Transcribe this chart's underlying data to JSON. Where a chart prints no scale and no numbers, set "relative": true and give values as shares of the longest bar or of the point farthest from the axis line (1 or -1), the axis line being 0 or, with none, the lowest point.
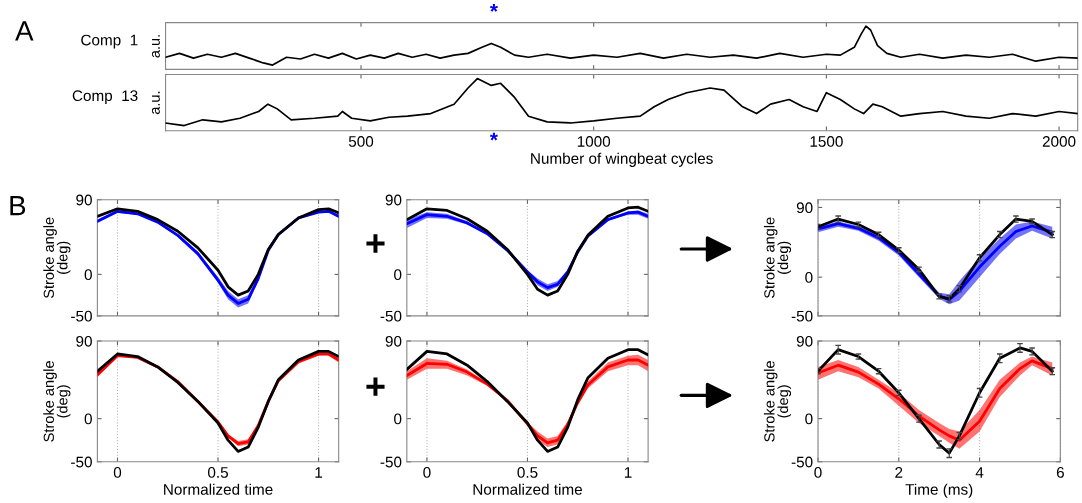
{
  "chart_data": [
    {
      "type": "line",
      "title": "Comp  1",
      "ylabel": "a.u.",
      "relative": true,
      "tick_labels": false,
      "xlim": [
        80,
        2040
      ],
      "xticks": [
        500,
        1000,
        1500,
        2000
      ],
      "annotations": [
        "A",
        "*"
      ],
      "x": [
        80,
        110,
        140,
        170,
        200,
        230,
        260,
        290,
        310,
        340,
        370,
        400,
        430,
        460,
        490,
        520,
        550,
        580,
        610,
        640,
        670,
        700,
        730,
        760,
        780,
        800,
        830,
        860,
        900,
        950,
        1000,
        1050,
        1100,
        1150,
        1200,
        1250,
        1300,
        1350,
        1400,
        1450,
        1500,
        1530,
        1560,
        1575,
        1585,
        1595,
        1610,
        1630,
        1660,
        1700,
        1750,
        1800,
        1850,
        1900,
        1950,
        2000,
        2040
      ],
      "series": [
        {
          "color": "#000000",
          "values": [
            0.28,
            0.37,
            0.26,
            0.35,
            0.28,
            0.37,
            0.26,
            0.15,
            0.1,
            0.28,
            0.24,
            0.35,
            0.26,
            0.37,
            0.24,
            0.33,
            0.26,
            0.37,
            0.28,
            0.35,
            0.26,
            0.33,
            0.37,
            0.51,
            0.6,
            0.51,
            0.33,
            0.28,
            0.35,
            0.26,
            0.33,
            0.28,
            0.37,
            0.26,
            0.35,
            0.28,
            0.33,
            0.26,
            0.37,
            0.28,
            0.35,
            0.33,
            0.51,
            0.82,
            1.0,
            0.91,
            0.55,
            0.37,
            0.28,
            0.35,
            0.26,
            0.33,
            0.28,
            0.35,
            0.19,
            0.28,
            0.26
          ]
        }
      ]
    },
    {
      "type": "line",
      "title": "Comp  13",
      "ylabel": "a.u.",
      "xlabel": "Number of wingbeat cycles",
      "relative": true,
      "tick_labels": "x",
      "xlim": [
        80,
        2040
      ],
      "xticks": [
        500,
        1000,
        1500,
        2000
      ],
      "annotations": [
        "*"
      ],
      "x": [
        80,
        120,
        160,
        200,
        240,
        280,
        300,
        320,
        350,
        400,
        450,
        460,
        480,
        520,
        560,
        600,
        650,
        700,
        730,
        750,
        780,
        800,
        830,
        860,
        900,
        950,
        1000,
        1050,
        1100,
        1130,
        1160,
        1200,
        1250,
        1280,
        1320,
        1350,
        1380,
        1420,
        1450,
        1480,
        1500,
        1530,
        1560,
        1580,
        1600,
        1620,
        1660,
        1700,
        1750,
        1800,
        1850,
        1900,
        1950,
        2000,
        2040
      ],
      "series": [
        {
          "color": "#000000",
          "values": [
            0.15,
            0.1,
            0.21,
            0.17,
            0.24,
            0.37,
            0.51,
            0.42,
            0.21,
            0.24,
            0.28,
            0.37,
            0.24,
            0.19,
            0.26,
            0.28,
            0.33,
            0.51,
            0.82,
            1.0,
            0.87,
            0.91,
            0.64,
            0.28,
            0.17,
            0.15,
            0.19,
            0.24,
            0.28,
            0.46,
            0.6,
            0.73,
            0.82,
            0.78,
            0.46,
            0.33,
            0.51,
            0.6,
            0.46,
            0.37,
            0.73,
            0.6,
            0.42,
            0.33,
            0.51,
            0.46,
            0.28,
            0.33,
            0.37,
            0.28,
            0.24,
            0.33,
            0.28,
            0.37,
            0.33
          ]
        }
      ]
    },
    {
      "type": "line",
      "ylabel": "Stroke angle\n(deg)",
      "tick_labels": "y",
      "grid": "x",
      "xlim": [
        -0.1,
        1.1
      ],
      "xticks": [
        0,
        0.5,
        1
      ],
      "ylim": [
        -50,
        90
      ],
      "yticks": [
        -50,
        0,
        90
      ],
      "annotations": [
        "B"
      ],
      "x": [
        -0.1,
        0,
        0.1,
        0.2,
        0.3,
        0.4,
        0.5,
        0.55,
        0.6,
        0.65,
        0.7,
        0.75,
        0.8,
        0.9,
        1.0,
        1.05,
        1.1
      ],
      "series": [
        {
          "color": "#0000ff",
          "values": [
            64,
            76,
            73,
            63,
            47,
            25,
            -7,
            -25,
            -35,
            -30,
            -5,
            29,
            48,
            68,
            75,
            76,
            70
          ],
          "lower": [
            62,
            74,
            72,
            62,
            45,
            22,
            -10,
            -30,
            -40,
            -35,
            -8,
            27,
            47,
            67,
            74,
            75,
            68
          ],
          "upper": [
            66,
            77,
            74,
            64,
            48,
            27,
            -3,
            -20,
            -30,
            -25,
            -2,
            30,
            48,
            68,
            76,
            77,
            72
          ]
        },
        {
          "color": "#000000",
          "values": [
            70,
            79,
            76,
            66,
            52,
            32,
            5,
            -15,
            -25,
            -20,
            0,
            30,
            48,
            68,
            78,
            79,
            74
          ]
        }
      ]
    },
    {
      "type": "line",
      "tick_labels": "y",
      "grid": "x",
      "xlim": [
        -0.1,
        1.1
      ],
      "xticks": [
        0,
        0.5,
        1
      ],
      "ylim": [
        -50,
        90
      ],
      "yticks": [
        -50,
        0,
        90
      ],
      "annotations": [
        "+"
      ],
      "x": [
        -0.1,
        0,
        0.1,
        0.2,
        0.3,
        0.4,
        0.5,
        0.55,
        0.6,
        0.65,
        0.7,
        0.75,
        0.8,
        0.9,
        1.0,
        1.05,
        1.1
      ],
      "series": [
        {
          "color": "#0000ff",
          "values": [
            61,
            72,
            70,
            62,
            49,
            29,
            3,
            -9,
            -16,
            -12,
            3,
            27,
            46,
            66,
            74,
            75,
            70
          ],
          "lower": [
            56,
            68,
            67,
            60,
            48,
            28,
            0,
            -13,
            -20,
            -15,
            0,
            25,
            45,
            65,
            72,
            72,
            67
          ],
          "upper": [
            66,
            75,
            73,
            64,
            50,
            30,
            5,
            -5,
            -12,
            -8,
            5,
            28,
            47,
            67,
            76,
            77,
            73
          ]
        },
        {
          "color": "#000000",
          "values": [
            66,
            79,
            77,
            67,
            52,
            30,
            0,
            -18,
            -25,
            -20,
            0,
            28,
            47,
            70,
            80,
            81,
            76
          ]
        }
      ]
    },
    {
      "type": "line",
      "ylabel": "Stroke angle\n(deg)",
      "tick_labels": "y",
      "grid": "x",
      "xlim": [
        0,
        6
      ],
      "xticks": [
        0,
        2,
        4,
        6
      ],
      "ylim": [
        -50,
        100
      ],
      "yticks": [
        -50,
        0,
        90
      ],
      "x": [
        0,
        0.5,
        1,
        1.5,
        2,
        2.5,
        3,
        3.25,
        3.5,
        4,
        4.5,
        4.9,
        5.3,
        5.8
      ],
      "series": [
        {
          "color": "#0000ff",
          "values": [
            62,
            69,
            63,
            51,
            32,
            4,
            -24,
            -29,
            -18,
            13,
            40,
            59,
            66,
            58
          ],
          "lower": [
            58,
            65,
            60,
            47,
            28,
            0,
            -28,
            -35,
            -30,
            0,
            30,
            50,
            60,
            50
          ],
          "upper": [
            65,
            72,
            66,
            55,
            35,
            8,
            -20,
            -22,
            -5,
            25,
            50,
            68,
            72,
            65
          ]
        },
        {
          "color": "#000000",
          "values": [
            65,
            75,
            68,
            55,
            35,
            10,
            -25,
            -28,
            -15,
            25,
            55,
            75,
            72,
            55
          ],
          "errors": [
            3,
            4,
            3,
            3,
            3,
            3,
            3,
            4,
            4,
            4,
            4,
            4,
            3,
            4
          ]
        }
      ]
    },
    {
      "type": "line",
      "ylabel": "Stroke angle\n(deg)",
      "xlabel": "Normalized time",
      "grid": "x",
      "xlim": [
        -0.1,
        1.1
      ],
      "xticks": [
        0,
        0.5,
        1
      ],
      "ylim": [
        -50,
        90
      ],
      "yticks": [
        -50,
        0,
        90
      ],
      "x": [
        -0.1,
        0,
        0.1,
        0.2,
        0.3,
        0.4,
        0.5,
        0.55,
        0.6,
        0.65,
        0.7,
        0.75,
        0.8,
        0.9,
        1.0,
        1.05,
        1.1
      ],
      "series": [
        {
          "color": "#ff0000",
          "values": [
            51,
            73,
            71,
            60,
            43,
            20,
            -4,
            -20,
            -29,
            -27,
            -8,
            20,
            44,
            66,
            75,
            75,
            68
          ],
          "lower": [
            48,
            72,
            70,
            59,
            42,
            19,
            -5,
            -22,
            -32,
            -30,
            -10,
            18,
            42,
            64,
            73,
            73,
            65
          ],
          "upper": [
            53,
            74,
            72,
            61,
            44,
            21,
            -2,
            -18,
            -26,
            -24,
            -6,
            22,
            45,
            67,
            76,
            76,
            70
          ]
        },
        {
          "color": "#000000",
          "values": [
            55,
            75,
            72,
            60,
            42,
            20,
            -5,
            -25,
            -38,
            -33,
            -10,
            20,
            45,
            68,
            78,
            78,
            72
          ]
        }
      ]
    },
    {
      "type": "line",
      "xlabel": "Normalized time",
      "grid": "x",
      "xlim": [
        -0.1,
        1.1
      ],
      "xticks": [
        0,
        0.5,
        1
      ],
      "ylim": [
        -50,
        90
      ],
      "yticks": [
        -50,
        0,
        90
      ],
      "annotations": [
        "+"
      ],
      "x": [
        -0.1,
        0,
        0.1,
        0.2,
        0.3,
        0.4,
        0.5,
        0.55,
        0.6,
        0.65,
        0.7,
        0.75,
        0.8,
        0.9,
        1.0,
        1.05,
        1.1
      ],
      "series": [
        {
          "color": "#ff0000",
          "values": [
            50,
            64,
            63,
            54,
            40,
            21,
            -6,
            -20,
            -28,
            -25,
            -7,
            19,
            39,
            60,
            68,
            68,
            62
          ],
          "lower": [
            45,
            58,
            58,
            50,
            38,
            20,
            -8,
            -25,
            -33,
            -30,
            -10,
            15,
            35,
            55,
            62,
            62,
            55
          ],
          "upper": [
            55,
            70,
            67,
            57,
            42,
            22,
            -4,
            -15,
            -23,
            -20,
            -3,
            22,
            43,
            65,
            73,
            74,
            68
          ]
        },
        {
          "color": "#000000",
          "values": [
            57,
            78,
            75,
            62,
            43,
            20,
            -5,
            -25,
            -38,
            -33,
            -10,
            22,
            47,
            70,
            80,
            80,
            74
          ]
        }
      ]
    },
    {
      "type": "line",
      "ylabel": "Stroke angle\n(deg)",
      "xlabel": "Time (ms)",
      "grid": "x",
      "xlim": [
        0,
        6
      ],
      "xticks": [
        0,
        2,
        4,
        6
      ],
      "ylim": [
        -50,
        90
      ],
      "yticks": [
        -50,
        0,
        90
      ],
      "x": [
        0,
        0.5,
        1,
        1.5,
        2,
        2.5,
        3,
        3.25,
        3.5,
        4,
        4.5,
        5,
        5.3,
        5.8
      ],
      "series": [
        {
          "color": "#ff0000",
          "values": [
            53,
            62,
            54,
            40,
            23,
            3,
            -13,
            -20,
            -25,
            -3,
            35,
            58,
            67,
            58
          ],
          "lower": [
            45,
            55,
            48,
            35,
            15,
            -5,
            -20,
            -28,
            -35,
            -15,
            25,
            50,
            62,
            50
          ],
          "upper": [
            60,
            68,
            60,
            45,
            30,
            10,
            -5,
            -12,
            -15,
            10,
            45,
            65,
            72,
            65
          ]
        },
        {
          "color": "#000000",
          "values": [
            55,
            80,
            72,
            55,
            30,
            0,
            -30,
            -40,
            -20,
            30,
            70,
            82,
            78,
            55
          ],
          "errors": [
            3,
            5,
            3,
            3,
            3,
            4,
            4,
            5,
            4,
            5,
            5,
            5,
            4,
            4
          ]
        }
      ]
    }
  ]
}
